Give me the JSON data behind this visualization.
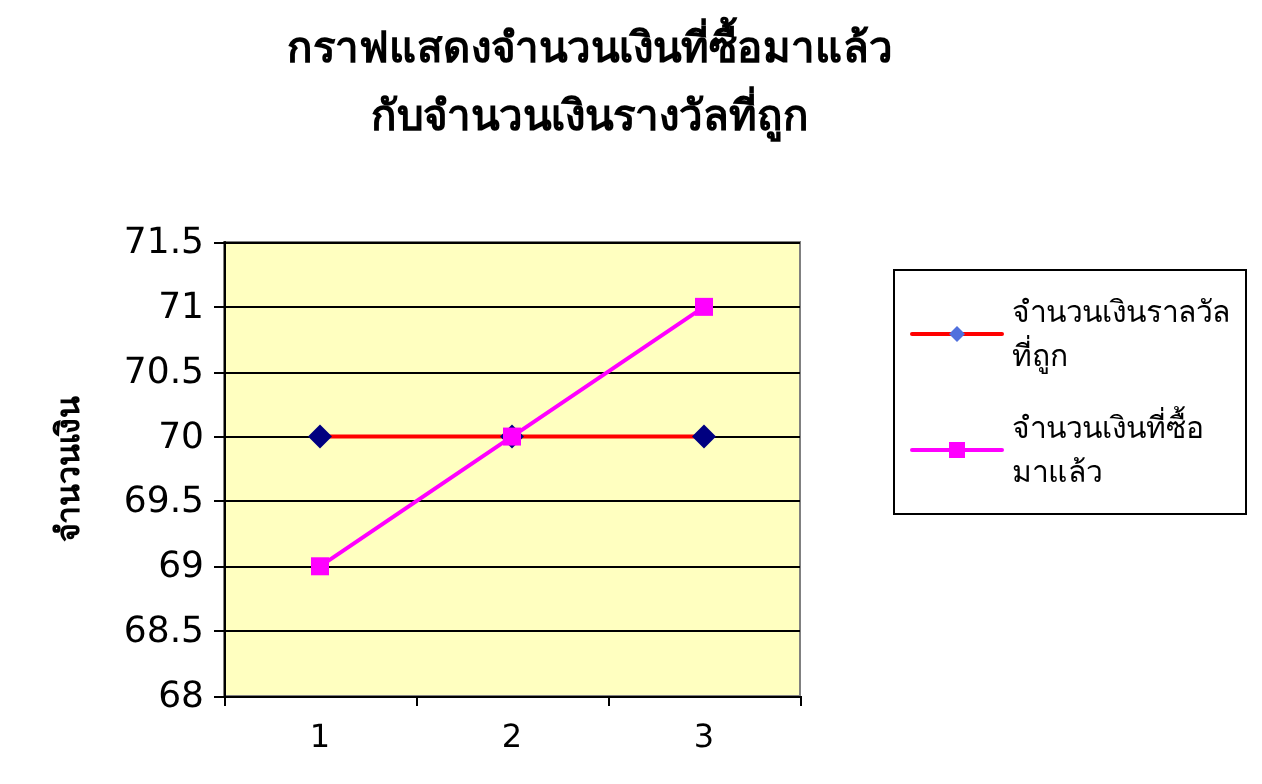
{
  "chart_data": {
    "type": "line",
    "title": "กราฟแสดงจำนวนเงินที่ซื้อมาแล้ว\nกับจำนวนเงินรางวัลที่ถูก",
    "ylabel": "จำนวนเงิน",
    "categories": [
      "1",
      "2",
      "3"
    ],
    "series": [
      {
        "name": "จำนวนเงินราลวัล\nที่ถูก",
        "color": "#ff0000",
        "colors": [
          "#000080",
          "#000080",
          "#000080"
        ],
        "marker": "diamond",
        "values": [
          70,
          70,
          70
        ]
      },
      {
        "name": "จำนวนเงินที่ซื้อ\nมาแล้ว",
        "color": "#ff00ff",
        "marker": "square",
        "values": [
          69,
          70,
          71
        ]
      }
    ],
    "ylim": [
      68,
      71.5
    ],
    "yticks": [
      68,
      68.5,
      69,
      69.5,
      70,
      70.5,
      71,
      71.5
    ],
    "grid": "y",
    "legend": "right",
    "line_style": "solid"
  }
}
